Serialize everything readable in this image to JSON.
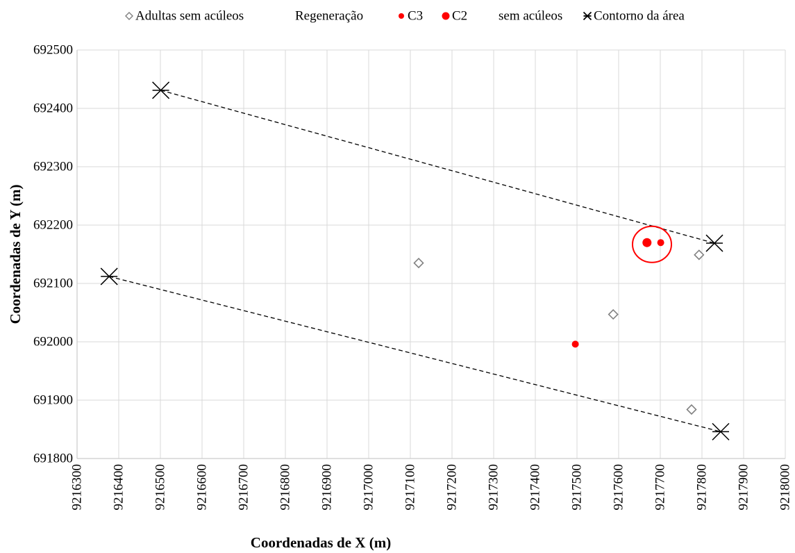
{
  "chart_data": {
    "type": "scatter",
    "title": "",
    "xlabel": "Coordenadas de X (m)",
    "ylabel": "Coordenadas de Y (m)",
    "xlim": [
      9216300,
      9218000
    ],
    "ylim": [
      691800,
      692500
    ],
    "x_ticks": [
      9216300,
      9216400,
      9216500,
      9216600,
      9216700,
      9216800,
      9216900,
      9217000,
      9217100,
      9217200,
      9217300,
      9217400,
      9217500,
      9217600,
      9217700,
      9217800,
      9217900,
      9218000
    ],
    "y_ticks": [
      691800,
      691900,
      692000,
      692100,
      692200,
      692300,
      692400,
      692500
    ],
    "grid": true,
    "legend_position": "top",
    "legend": [
      {
        "label": "Adultas sem acúleos",
        "marker": "diamond-open",
        "color": "#808080"
      },
      {
        "label": "Regeneração",
        "marker": "none",
        "color": "#000000"
      },
      {
        "label": "C3",
        "marker": "circle-filled-small",
        "color": "#ff0000"
      },
      {
        "label": "C2",
        "marker": "circle-filled",
        "color": "#ff0000"
      },
      {
        "label": "sem acúleos",
        "marker": "none",
        "color": "#000000"
      },
      {
        "label": "Contorno da área",
        "marker": "asterisk",
        "color": "#000000"
      }
    ],
    "series": [
      {
        "name": "Adultas sem acúleos",
        "marker": "diamond-open",
        "color": "#808080",
        "points": [
          {
            "x": 9217120,
            "y": 692135
          },
          {
            "x": 9217587,
            "y": 692047
          },
          {
            "x": 9217793,
            "y": 692149
          },
          {
            "x": 9217775,
            "y": 691884
          }
        ]
      },
      {
        "name": "C3",
        "marker": "circle-filled-small",
        "color": "#ff0000",
        "points": [
          {
            "x": 9217496,
            "y": 691996
          },
          {
            "x": 9217701,
            "y": 692170
          }
        ]
      },
      {
        "name": "C2",
        "marker": "circle-filled",
        "color": "#ff0000",
        "points": [
          {
            "x": 9217668,
            "y": 692170
          }
        ]
      },
      {
        "name": "Contorno da área",
        "marker": "asterisk",
        "color": "#000000",
        "points": [
          {
            "x": 9216501,
            "y": 692431
          },
          {
            "x": 9217830,
            "y": 692169
          },
          {
            "x": 9216377,
            "y": 692112
          },
          {
            "x": 9217845,
            "y": 691846
          }
        ]
      }
    ],
    "lines": [
      {
        "style": "dashed",
        "color": "#000000",
        "from": {
          "x": 9216501,
          "y": 692431
        },
        "to": {
          "x": 9217830,
          "y": 692169
        }
      },
      {
        "style": "dashed",
        "color": "#000000",
        "from": {
          "x": 9216377,
          "y": 692112
        },
        "to": {
          "x": 9217845,
          "y": 691846
        }
      }
    ],
    "annotations": [
      {
        "type": "ellipse-outline",
        "color": "#ff0000",
        "center": {
          "x": 9217680,
          "y": 692167
        },
        "radius_x": 28,
        "radius_y": 26
      }
    ]
  }
}
